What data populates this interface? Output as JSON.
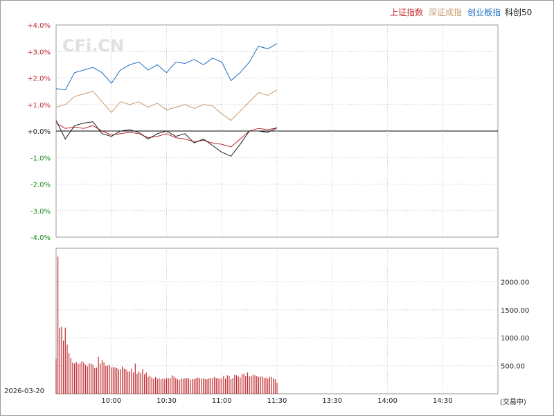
{
  "chart_data": [
    {
      "type": "line",
      "legend_placement": "top-right",
      "series": [
        {
          "name": "上证指数",
          "color": "#c0282d",
          "x": [
            "09:30",
            "09:35",
            "09:40",
            "09:45",
            "09:50",
            "09:55",
            "10:00",
            "10:05",
            "10:10",
            "10:15",
            "10:20",
            "10:25",
            "10:30",
            "10:35",
            "10:40",
            "10:45",
            "10:50",
            "10:55",
            "11:00",
            "11:05",
            "11:10",
            "11:15",
            "11:20",
            "11:25",
            "11:30"
          ],
          "y": [
            0.3,
            0.1,
            0.15,
            0.1,
            0.2,
            0.0,
            -0.15,
            -0.1,
            -0.05,
            -0.1,
            -0.25,
            -0.2,
            -0.1,
            -0.25,
            -0.3,
            -0.4,
            -0.35,
            -0.45,
            -0.5,
            -0.6,
            -0.3,
            0.0,
            0.1,
            0.05,
            0.12
          ]
        },
        {
          "name": "深证成指",
          "color": "#c89a6e",
          "x": [
            "09:30",
            "09:35",
            "09:40",
            "09:45",
            "09:50",
            "09:55",
            "10:00",
            "10:05",
            "10:10",
            "10:15",
            "10:20",
            "10:25",
            "10:30",
            "10:35",
            "10:40",
            "10:45",
            "10:50",
            "10:55",
            "11:00",
            "11:05",
            "11:10",
            "11:15",
            "11:20",
            "11:25",
            "11:30"
          ],
          "y": [
            0.9,
            1.0,
            1.3,
            1.4,
            1.5,
            1.1,
            0.7,
            1.1,
            1.0,
            1.1,
            0.9,
            1.05,
            0.8,
            0.9,
            1.0,
            0.85,
            1.0,
            0.95,
            0.65,
            0.4,
            0.75,
            1.1,
            1.45,
            1.35,
            1.55
          ]
        },
        {
          "name": "创业板指",
          "color": "#1f6fc4",
          "x": [
            "09:30",
            "09:35",
            "09:40",
            "09:45",
            "09:50",
            "09:55",
            "10:00",
            "10:05",
            "10:10",
            "10:15",
            "10:20",
            "10:25",
            "10:30",
            "10:35",
            "10:40",
            "10:45",
            "10:50",
            "10:55",
            "11:00",
            "11:05",
            "11:10",
            "11:15",
            "11:20",
            "11:25",
            "11:30"
          ],
          "y": [
            1.6,
            1.55,
            2.2,
            2.3,
            2.4,
            2.2,
            1.8,
            2.3,
            2.5,
            2.6,
            2.3,
            2.5,
            2.2,
            2.6,
            2.55,
            2.7,
            2.5,
            2.75,
            2.6,
            1.9,
            2.2,
            2.6,
            3.2,
            3.1,
            3.3
          ]
        },
        {
          "name": "科创50",
          "color": "#1a1a1a",
          "x": [
            "09:30",
            "09:35",
            "09:40",
            "09:45",
            "09:50",
            "09:55",
            "10:00",
            "10:05",
            "10:10",
            "10:15",
            "10:20",
            "10:25",
            "10:30",
            "10:35",
            "10:40",
            "10:45",
            "10:50",
            "10:55",
            "11:00",
            "11:05",
            "11:10",
            "11:15",
            "11:20",
            "11:25",
            "11:30"
          ],
          "y": [
            0.4,
            -0.3,
            0.2,
            0.3,
            0.35,
            -0.1,
            -0.2,
            0.0,
            0.05,
            -0.05,
            -0.3,
            -0.1,
            0.0,
            -0.2,
            -0.1,
            -0.45,
            -0.3,
            -0.55,
            -0.8,
            -0.95,
            -0.5,
            0.0,
            0.0,
            -0.05,
            0.12
          ]
        }
      ],
      "y_ticks": [
        "+4.0%",
        "+3.0%",
        "+2.0%",
        "+1.0%",
        "+0.0%",
        "-1.0%",
        "-2.0%",
        "-3.0%",
        "-4.0%"
      ],
      "ylim": [
        -4,
        4
      ]
    },
    {
      "type": "bar",
      "name": "volume",
      "color": "#c0282d",
      "x_start": "09:30",
      "step_minutes": 1,
      "values": [
        620,
        2450,
        1180,
        1200,
        950,
        1180,
        880,
        730,
        640,
        560,
        540,
        570,
        530,
        550,
        580,
        560,
        520,
        490,
        540,
        540,
        520,
        460,
        470,
        660,
        540,
        600,
        560,
        500,
        500,
        520,
        470,
        480,
        470,
        460,
        440,
        440,
        490,
        450,
        440,
        400,
        400,
        450,
        380,
        540,
        360,
        400,
        370,
        440,
        350,
        380,
        300,
        320,
        290,
        270,
        300,
        270,
        280,
        260,
        280,
        260,
        280,
        280,
        280,
        330,
        310,
        280,
        260,
        250,
        280,
        270,
        280,
        280,
        280,
        250,
        260,
        260,
        280,
        290,
        280,
        270,
        280,
        260,
        260,
        280,
        280,
        280,
        300,
        280,
        280,
        270,
        280,
        320,
        270,
        330,
        320,
        260,
        280,
        340,
        330,
        310,
        290,
        350,
        360,
        320,
        380,
        310,
        320,
        340,
        330,
        320,
        300,
        310,
        310,
        280,
        290,
        270,
        300,
        300,
        280,
        260,
        200
      ],
      "y_ticks": [
        "2000.00",
        "1500.00",
        "1000.00",
        "500.00"
      ],
      "ylim": [
        0,
        2600
      ]
    }
  ],
  "x_ticks": [
    "10:00",
    "10:30",
    "11:00",
    "11:30",
    "13:30",
    "14:00",
    "14:30"
  ],
  "date_label": "2026-03-20",
  "unit_label": "(交易中)",
  "watermark": "CFi.CN"
}
